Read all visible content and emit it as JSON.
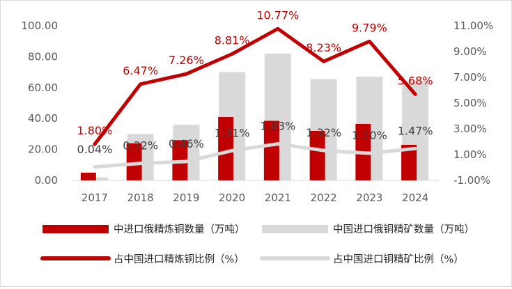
{
  "chart_data": {
    "type": "bar",
    "categories": [
      "2017",
      "2018",
      "2019",
      "2020",
      "2021",
      "2022",
      "2023",
      "2024"
    ],
    "left_axis": {
      "ylim": [
        0,
        100
      ],
      "ticks": [
        "0.00",
        "20.00",
        "40.00",
        "60.00",
        "80.00",
        "100.00"
      ],
      "tick_values": [
        0,
        20,
        40,
        60,
        80,
        100
      ]
    },
    "right_axis": {
      "ylim": [
        -1,
        11
      ],
      "ticks": [
        "-1.00%",
        "1.00%",
        "3.00%",
        "5.00%",
        "7.00%",
        "9.00%",
        "11.00%"
      ],
      "tick_values": [
        -1,
        1,
        3,
        5,
        7,
        9,
        11
      ]
    },
    "series": [
      {
        "name": "中进口俄精炼铜数量（万吨）",
        "type": "bar",
        "axis": "left",
        "color": "#c00000",
        "values": [
          5,
          24,
          26,
          41,
          38.5,
          32,
          36.5,
          23
        ]
      },
      {
        "name": "中国进口俄铜精矿数量（万吨）",
        "type": "bar",
        "axis": "left",
        "color": "#d9d9d9",
        "values": [
          2,
          30,
          36,
          70,
          82,
          65.5,
          67,
          64.5
        ]
      },
      {
        "name": "占中国进口精炼铜比例（%）",
        "type": "line",
        "axis": "right",
        "color": "#c00000",
        "values": [
          1.8,
          6.47,
          7.26,
          8.81,
          10.77,
          8.23,
          9.79,
          5.68
        ],
        "labels": [
          "1.80%",
          "6.47%",
          "7.26%",
          "8.81%",
          "10.77%",
          "8.23%",
          "9.79%",
          "5.68%"
        ]
      },
      {
        "name": "占中国进口铜精矿比例（%）",
        "type": "line",
        "axis": "right",
        "color": "#d9d9d9",
        "values": [
          0.04,
          0.32,
          0.46,
          1.31,
          1.83,
          1.32,
          1.1,
          1.47
        ],
        "labels": [
          "0.04%",
          "0.32%",
          "0.46%",
          "1.31%",
          "1.83%",
          "1.32%",
          "1.10%",
          "1.47%"
        ]
      }
    ],
    "title": "",
    "legend_position": "bottom"
  }
}
